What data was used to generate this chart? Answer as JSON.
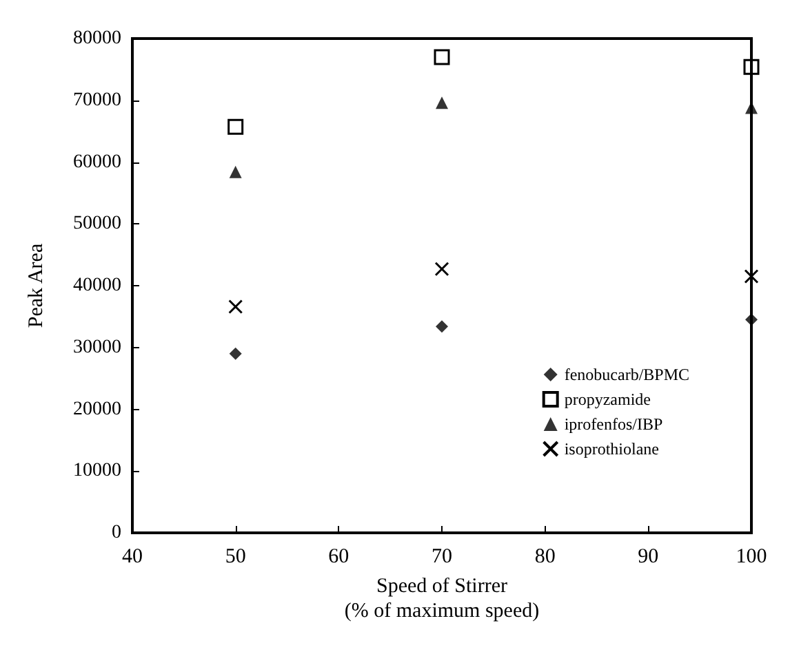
{
  "chart_data": {
    "type": "scatter",
    "xlabel": "Speed of Stirrer\n(% of maximum speed)",
    "ylabel": "Peak Area",
    "x": [
      50,
      70,
      100
    ],
    "series": [
      {
        "name": "fenobucarb/BPMC",
        "color": "#000000",
        "marker": "diamond",
        "values": [
          29000,
          33400,
          34500
        ]
      },
      {
        "name": "propyzamide",
        "color": "#000000",
        "marker": "square",
        "values": [
          65700,
          77000,
          75400
        ]
      },
      {
        "name": "iprofenfos/IBP",
        "color": "#000000",
        "marker": "triangle",
        "values": [
          58400,
          69600,
          68800
        ]
      },
      {
        "name": "isoprothiolane",
        "color": "#000000",
        "marker": "cross",
        "values": [
          36600,
          42700,
          41500
        ]
      }
    ],
    "xlim": [
      40,
      100
    ],
    "xticks": [
      40,
      50,
      60,
      70,
      80,
      90,
      100
    ],
    "ylim": [
      0,
      80000
    ],
    "yticks": [
      0,
      10000,
      20000,
      30000,
      40000,
      50000,
      60000,
      70000,
      80000
    ],
    "grid": false,
    "legend": "bottom right"
  }
}
